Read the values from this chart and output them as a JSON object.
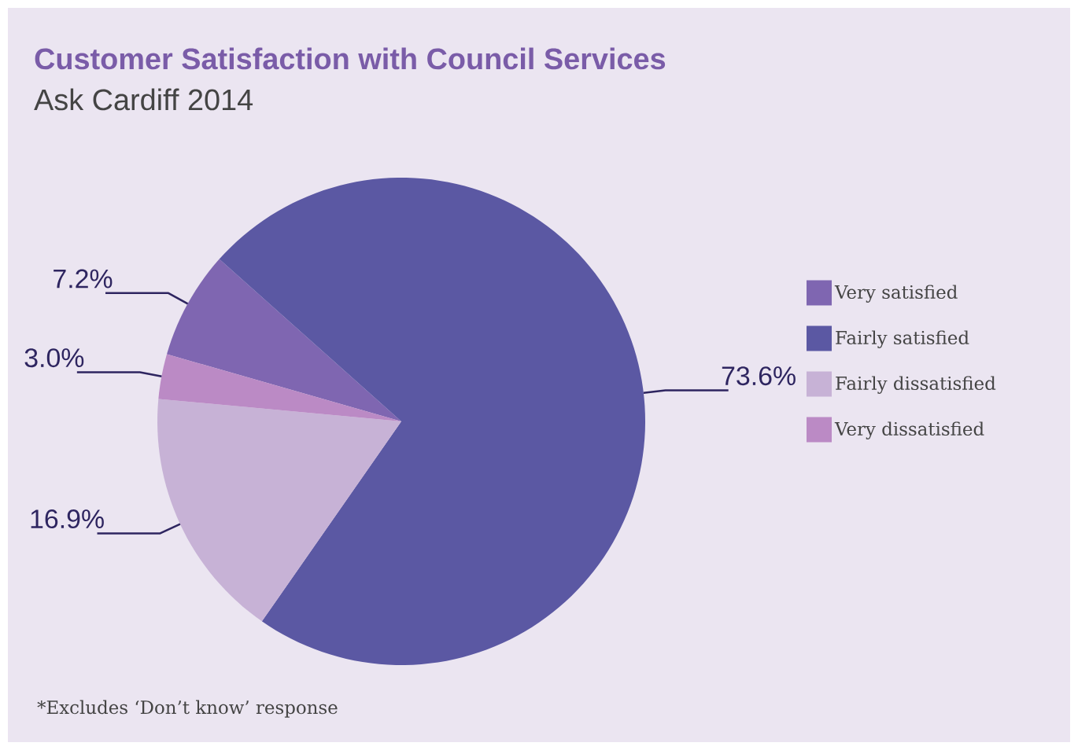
{
  "chart_data": {
    "type": "pie",
    "title": "Customer Satisfaction with Council Services",
    "subtitle": "Ask Cardiff 2014",
    "categories": [
      "Very satisfied",
      "Fairly satisfied",
      "Fairly dissatisfied",
      "Very dissatisfied"
    ],
    "values": [
      7.2,
      73.6,
      16.9,
      3.0
    ],
    "value_labels": [
      "7.2%",
      "73.6%",
      "16.9%",
      "3.0%"
    ],
    "colors": [
      "#7f66b1",
      "#5b58a3",
      "#c7b2d6",
      "#bb8ac5"
    ],
    "legend": "right",
    "annotations": [
      "*Excludes ‘Don’t know’ response"
    ]
  }
}
